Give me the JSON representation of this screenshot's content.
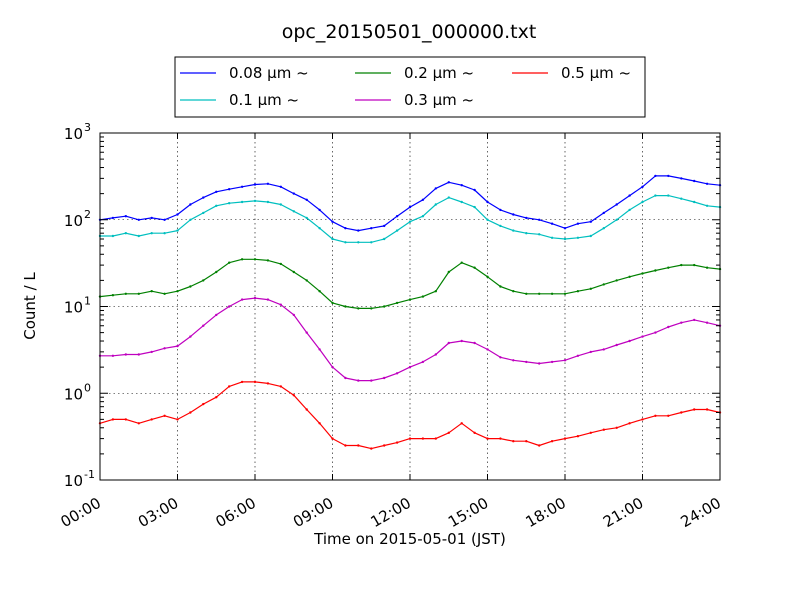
{
  "chart_data": {
    "type": "line",
    "title": "opc_20150501_000000.txt",
    "xlabel": "Time on 2015-05-01 (JST)",
    "ylabel": "Count / L",
    "y_scale": "log",
    "ylim": [
      0.1,
      1000
    ],
    "xlim": [
      "2015-05-01 00:00",
      "2015-05-02 00:00"
    ],
    "grid": true,
    "legend_position": "top, above plot",
    "x_ticks": [
      "00:00",
      "03:00",
      "06:00",
      "09:00",
      "12:00",
      "15:00",
      "18:00",
      "21:00",
      "24:00"
    ],
    "y_ticks": [
      {
        "base": "10",
        "exp": "-1"
      },
      {
        "base": "10",
        "exp": "0"
      },
      {
        "base": "10",
        "exp": "1"
      },
      {
        "base": "10",
        "exp": "2"
      },
      {
        "base": "10",
        "exp": "3"
      }
    ],
    "x_hours": [
      0,
      0.5,
      1,
      1.5,
      2,
      2.5,
      3,
      3.5,
      4,
      4.5,
      5,
      5.5,
      6,
      6.5,
      7,
      7.5,
      8,
      8.5,
      9,
      9.5,
      10,
      10.5,
      11,
      11.5,
      12,
      12.5,
      13,
      13.5,
      14,
      14.5,
      15,
      15.5,
      16,
      16.5,
      17,
      17.5,
      18,
      18.5,
      19,
      19.5,
      20,
      20.5,
      21,
      21.5,
      22,
      22.5,
      23,
      23.5,
      24
    ],
    "series": [
      {
        "name": "0.08 μm ~",
        "color": "#0000ff",
        "values": [
          100,
          105,
          110,
          100,
          105,
          100,
          115,
          150,
          180,
          210,
          225,
          240,
          255,
          260,
          240,
          200,
          170,
          130,
          95,
          80,
          75,
          80,
          85,
          110,
          140,
          170,
          230,
          270,
          250,
          220,
          160,
          130,
          115,
          105,
          100,
          90,
          80,
          90,
          95,
          120,
          150,
          190,
          240,
          320,
          320,
          300,
          280,
          260,
          250
        ]
      },
      {
        "name": "0.1 μm ~",
        "color": "#00bfbf",
        "values": [
          65,
          65,
          70,
          65,
          70,
          70,
          75,
          100,
          120,
          145,
          155,
          160,
          165,
          160,
          150,
          125,
          105,
          80,
          60,
          55,
          55,
          55,
          60,
          75,
          95,
          110,
          150,
          180,
          160,
          140,
          100,
          85,
          75,
          70,
          68,
          62,
          60,
          62,
          65,
          80,
          100,
          130,
          160,
          190,
          190,
          175,
          160,
          145,
          140
        ]
      },
      {
        "name": "0.2 μm ~",
        "color": "#008000",
        "values": [
          13,
          13.5,
          14,
          14,
          15,
          14,
          15,
          17,
          20,
          25,
          32,
          35,
          35,
          34,
          31,
          25,
          20,
          15,
          11,
          10,
          9.5,
          9.5,
          10,
          11,
          12,
          13,
          15,
          25,
          32,
          28,
          22,
          17,
          15,
          14,
          14,
          14,
          14,
          15,
          16,
          18,
          20,
          22,
          24,
          26,
          28,
          30,
          30,
          28,
          27
        ]
      },
      {
        "name": "0.3 μm ~",
        "color": "#bf00bf",
        "values": [
          2.7,
          2.7,
          2.8,
          2.8,
          3,
          3.3,
          3.5,
          4.5,
          6,
          8,
          10,
          12,
          12.5,
          12,
          10.5,
          8,
          5,
          3.2,
          2,
          1.5,
          1.4,
          1.4,
          1.5,
          1.7,
          2,
          2.3,
          2.8,
          3.8,
          4,
          3.8,
          3.2,
          2.6,
          2.4,
          2.3,
          2.2,
          2.3,
          2.4,
          2.7,
          3,
          3.2,
          3.6,
          4,
          4.5,
          5,
          5.8,
          6.5,
          7,
          6.5,
          6
        ]
      },
      {
        "name": "0.5 μm ~",
        "color": "#ff0000",
        "values": [
          0.45,
          0.5,
          0.5,
          0.45,
          0.5,
          0.55,
          0.5,
          0.6,
          0.75,
          0.9,
          1.2,
          1.35,
          1.35,
          1.3,
          1.2,
          0.95,
          0.65,
          0.45,
          0.3,
          0.25,
          0.25,
          0.23,
          0.25,
          0.27,
          0.3,
          0.3,
          0.3,
          0.35,
          0.45,
          0.35,
          0.3,
          0.3,
          0.28,
          0.28,
          0.25,
          0.28,
          0.3,
          0.32,
          0.35,
          0.38,
          0.4,
          0.45,
          0.5,
          0.55,
          0.55,
          0.6,
          0.65,
          0.65,
          0.6
        ]
      }
    ]
  }
}
